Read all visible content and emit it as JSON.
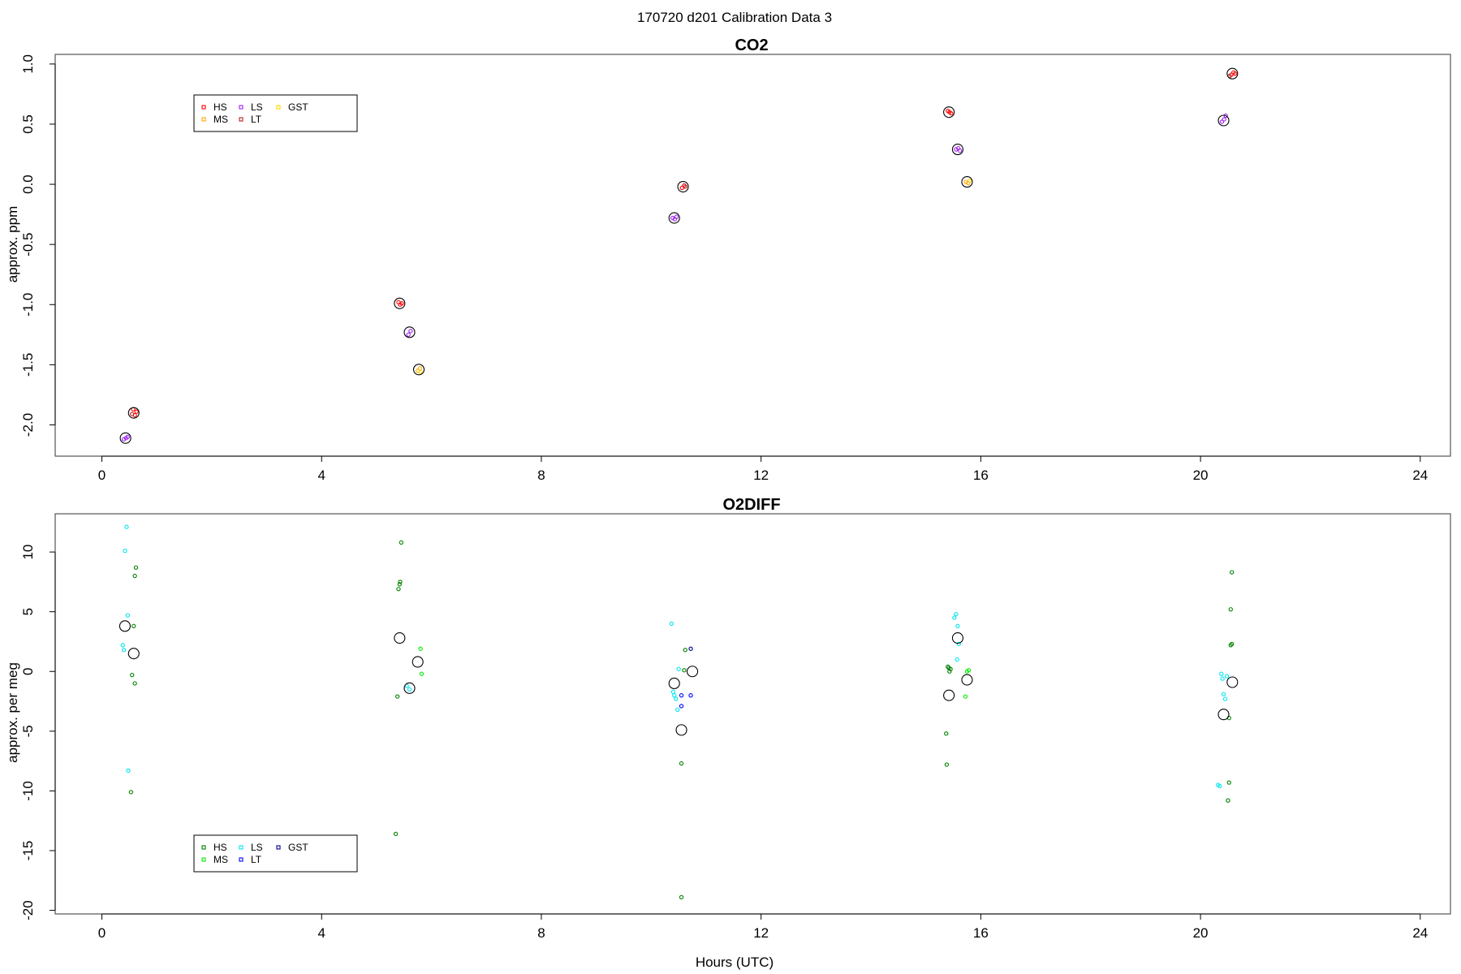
{
  "suptitle": "170720   d201   Calibration Data 3",
  "xlabel": "Hours (UTC)",
  "colors": {
    "CO2": {
      "HS": "#ff0000",
      "MS": "#ffa500",
      "LS": "#a020f0",
      "LT": "#b22222",
      "GST": "#ffd700"
    },
    "O2DIFF": {
      "HS": "#008000",
      "MS": "#00ee00",
      "LS": "#00e5ee",
      "LT": "#0000ff",
      "GST": "#00008b"
    },
    "mean_circle": "#000000"
  },
  "chart_data": [
    {
      "type": "scatter",
      "title": "CO2",
      "ylabel": "approx. ppm",
      "xlim": [
        -0.85,
        24.55
      ],
      "ylim": [
        -2.26,
        1.08
      ],
      "xticks": [
        0,
        4,
        8,
        12,
        16,
        20,
        24
      ],
      "yticks": [
        -2.0,
        -1.5,
        -1.0,
        -0.5,
        0.0,
        0.5,
        1.0
      ],
      "ytick_labels": [
        "-2.0",
        "-1.5",
        "-1.0",
        "-0.5",
        "0.0",
        "0.5",
        "1.0"
      ],
      "legend": {
        "position": "top-left",
        "entries": [
          "HS",
          "MS",
          "LS",
          "LT",
          "GST"
        ]
      },
      "means": [
        {
          "x": 0.43,
          "y": -2.11
        },
        {
          "x": 0.58,
          "y": -1.9
        },
        {
          "x": 5.42,
          "y": -0.99
        },
        {
          "x": 5.6,
          "y": -1.23
        },
        {
          "x": 5.77,
          "y": -1.54
        },
        {
          "x": 10.42,
          "y": -0.28
        },
        {
          "x": 10.58,
          "y": -0.02
        },
        {
          "x": 15.42,
          "y": 0.6
        },
        {
          "x": 15.58,
          "y": 0.29
        },
        {
          "x": 15.75,
          "y": 0.02
        },
        {
          "x": 20.42,
          "y": 0.53
        },
        {
          "x": 20.58,
          "y": 0.92
        }
      ],
      "series": [
        {
          "name": "HS",
          "points": [
            [
              0.57,
              -1.87
            ],
            [
              0.6,
              -1.92
            ],
            [
              0.63,
              -1.89
            ],
            [
              5.4,
              -0.98
            ],
            [
              5.43,
              -1.0
            ],
            [
              5.46,
              -0.99
            ],
            [
              10.56,
              -0.03
            ],
            [
              10.6,
              -0.01
            ],
            [
              15.4,
              0.61
            ],
            [
              15.43,
              0.6
            ],
            [
              15.46,
              0.59
            ],
            [
              20.56,
              0.91
            ],
            [
              20.6,
              0.93
            ],
            [
              20.63,
              0.92
            ]
          ]
        },
        {
          "name": "MS",
          "points": [
            [
              5.75,
              -1.55
            ],
            [
              5.79,
              -1.53
            ],
            [
              15.73,
              0.02
            ],
            [
              15.77,
              0.01
            ]
          ]
        },
        {
          "name": "LS",
          "points": [
            [
              0.4,
              -2.12
            ],
            [
              0.44,
              -2.11
            ],
            [
              0.47,
              -2.1
            ],
            [
              5.58,
              -1.25
            ],
            [
              5.62,
              -1.22
            ],
            [
              10.39,
              -0.28
            ],
            [
              10.43,
              -0.29
            ],
            [
              10.46,
              -0.27
            ],
            [
              15.55,
              0.29
            ],
            [
              15.59,
              0.3
            ],
            [
              15.62,
              0.28
            ],
            [
              20.39,
              0.52
            ],
            [
              20.43,
              0.54
            ],
            [
              20.46,
              0.57
            ]
          ]
        },
        {
          "name": "LT",
          "points": [
            [
              0.55,
              -1.91
            ],
            [
              10.62,
              -0.02
            ],
            [
              20.53,
              0.9
            ]
          ]
        },
        {
          "name": "GST",
          "points": [
            [
              5.8,
              -1.56
            ],
            [
              15.8,
              0.03
            ]
          ]
        }
      ]
    },
    {
      "type": "scatter",
      "title": "O2DIFF",
      "ylabel": "approx. per meg",
      "xlim": [
        -0.85,
        24.55
      ],
      "ylim": [
        -20.3,
        13.2
      ],
      "xticks": [
        0,
        4,
        8,
        12,
        16,
        20,
        24
      ],
      "yticks": [
        -20,
        -15,
        -10,
        -5,
        0,
        5,
        10
      ],
      "ytick_labels": [
        "-20",
        "-15",
        "-10",
        "-5",
        "0",
        "5",
        "10"
      ],
      "legend": {
        "position": "bottom-left",
        "entries": [
          "HS",
          "MS",
          "LS",
          "LT",
          "GST"
        ]
      },
      "means": [
        {
          "x": 0.42,
          "y": 3.8
        },
        {
          "x": 0.58,
          "y": 1.5
        },
        {
          "x": 5.42,
          "y": 2.8
        },
        {
          "x": 5.6,
          "y": -1.4
        },
        {
          "x": 5.75,
          "y": 0.8
        },
        {
          "x": 10.42,
          "y": -1.0
        },
        {
          "x": 10.55,
          "y": -4.9
        },
        {
          "x": 10.75,
          "y": 0.0
        },
        {
          "x": 15.42,
          "y": -2.0
        },
        {
          "x": 15.58,
          "y": 2.8
        },
        {
          "x": 15.75,
          "y": -0.7
        },
        {
          "x": 20.42,
          "y": -3.6
        },
        {
          "x": 20.58,
          "y": -0.9
        }
      ],
      "series": [
        {
          "name": "HS",
          "points": [
            [
              0.55,
              -0.3
            ],
            [
              0.58,
              3.8
            ],
            [
              0.6,
              8.0
            ],
            [
              0.62,
              8.7
            ],
            [
              0.6,
              -1.0
            ],
            [
              0.53,
              -10.1
            ],
            [
              5.35,
              -13.6
            ],
            [
              5.38,
              -2.1
            ],
            [
              5.4,
              6.9
            ],
            [
              5.42,
              7.3
            ],
            [
              5.43,
              7.5
            ],
            [
              5.45,
              10.8
            ],
            [
              10.55,
              -7.7
            ],
            [
              10.55,
              -18.9
            ],
            [
              10.6,
              0.1
            ],
            [
              10.62,
              1.8
            ],
            [
              15.37,
              -5.2
            ],
            [
              15.38,
              -7.8
            ],
            [
              15.4,
              0.4
            ],
            [
              15.42,
              0.3
            ],
            [
              15.43,
              0.0
            ],
            [
              15.45,
              0.2
            ],
            [
              20.52,
              -9.3
            ],
            [
              20.5,
              -10.8
            ],
            [
              20.52,
              -3.9
            ],
            [
              20.55,
              5.2
            ],
            [
              20.57,
              8.3
            ],
            [
              20.55,
              2.2
            ],
            [
              20.57,
              2.3
            ]
          ]
        },
        {
          "name": "MS",
          "points": [
            [
              5.8,
              1.9
            ],
            [
              5.82,
              -0.2
            ],
            [
              15.72,
              -2.1
            ],
            [
              15.75,
              0.0
            ],
            [
              15.78,
              0.1
            ]
          ]
        },
        {
          "name": "LS",
          "points": [
            [
              0.42,
              10.1
            ],
            [
              0.45,
              12.1
            ],
            [
              0.47,
              4.7
            ],
            [
              0.38,
              2.2
            ],
            [
              0.4,
              1.8
            ],
            [
              0.48,
              -8.3
            ],
            [
              5.55,
              -1.2
            ],
            [
              5.6,
              -1.5
            ],
            [
              10.37,
              4.0
            ],
            [
              10.42,
              -2.0
            ],
            [
              10.45,
              -2.3
            ],
            [
              10.48,
              -3.2
            ],
            [
              10.5,
              0.2
            ],
            [
              10.4,
              -1.7
            ],
            [
              15.52,
              4.5
            ],
            [
              15.55,
              4.8
            ],
            [
              15.57,
              1.0
            ],
            [
              15.6,
              2.3
            ],
            [
              15.58,
              3.8
            ],
            [
              20.32,
              -9.5
            ],
            [
              20.35,
              -9.6
            ],
            [
              20.38,
              -0.2
            ],
            [
              20.4,
              -0.6
            ],
            [
              20.42,
              -1.9
            ],
            [
              20.45,
              -2.3
            ],
            [
              20.48,
              -0.4
            ]
          ]
        },
        {
          "name": "LT",
          "points": [
            [
              10.55,
              -2.0
            ],
            [
              10.72,
              -2.0
            ],
            [
              10.55,
              -2.9
            ]
          ]
        },
        {
          "name": "GST",
          "points": [
            [
              10.72,
              1.9
            ]
          ]
        }
      ]
    }
  ]
}
